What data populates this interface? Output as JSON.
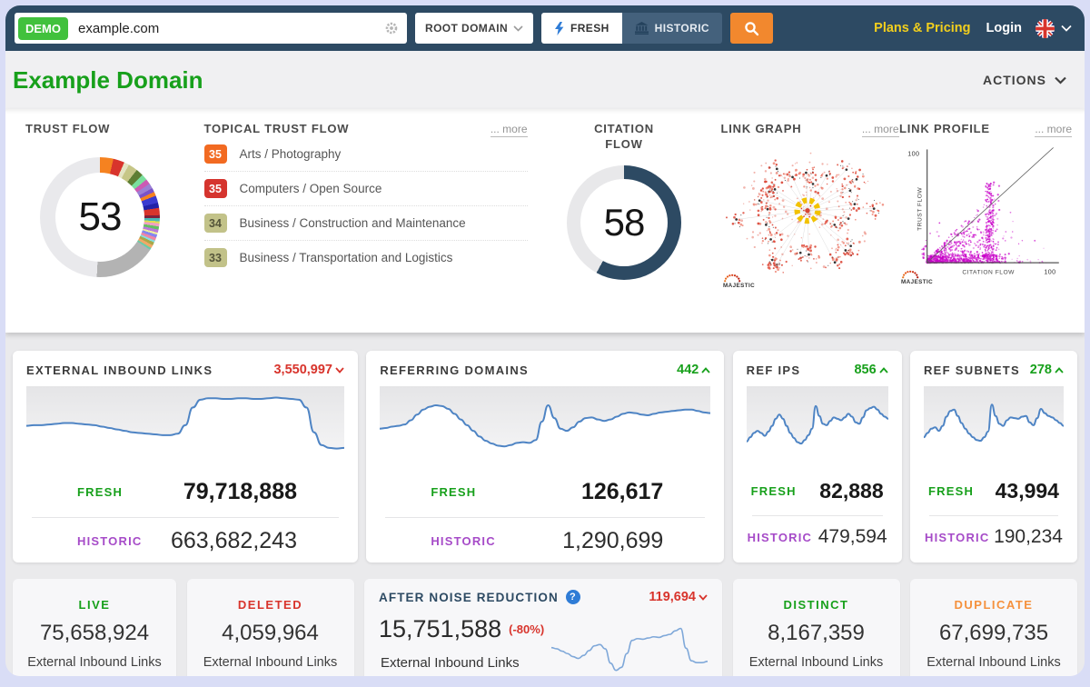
{
  "navbar": {
    "demo_badge": "DEMO",
    "search_value": "example.com",
    "scope_selector": "ROOT DOMAIN",
    "fresh_tab": "FRESH",
    "historic_tab": "HISTORIC",
    "plans_link": "Plans & Pricing",
    "login_link": "Login"
  },
  "header": {
    "title": "Example Domain",
    "actions_label": "ACTIONS"
  },
  "flow_metrics": {
    "trust_flow": {
      "label": "TRUST FLOW"
    },
    "topical_trust_flow": {
      "label": "TOPICAL TRUST FLOW",
      "more_label": "... more",
      "items": [
        {
          "score": "35",
          "label": "Arts / Photography",
          "badge_style": "background:#f26a21;color:#ffffff"
        },
        {
          "score": "35",
          "label": "Computers / Open Source",
          "badge_style": "background:#d5342e;color:#ffffff"
        },
        {
          "score": "34",
          "label": "Business / Construction and Maintenance",
          "badge_style": "background:#c2c289;color:#55553a"
        },
        {
          "score": "33",
          "label": "Business / Transportation and Logistics",
          "badge_style": "background:#c2c289;color:#55553a"
        }
      ]
    },
    "citation_flow": {
      "label": "CITATION FLOW"
    },
    "link_graph": {
      "label": "LINK GRAPH",
      "more_label": "... more",
      "brand": "MAJESTIC"
    },
    "link_profile": {
      "label": "LINK PROFILE",
      "more_label": "... more",
      "brand": "MAJESTIC"
    }
  },
  "link_cards": [
    {
      "title": "EXTERNAL INBOUND LINKS",
      "delta": "3,550,997",
      "trend": "down",
      "fresh_label": "FRESH",
      "fresh_value": "79,718,888",
      "historic_label": "HISTORIC",
      "historic_value": "663,682,243"
    },
    {
      "title": "REFERRING DOMAINS",
      "delta": "442",
      "trend": "up",
      "fresh_label": "FRESH",
      "fresh_value": "126,617",
      "historic_label": "HISTORIC",
      "historic_value": "1,290,699"
    },
    {
      "title": "REF IPS",
      "delta": "856",
      "trend": "up",
      "fresh_label": "FRESH",
      "fresh_value": "82,888",
      "historic_label": "HISTORIC",
      "historic_value": "479,594"
    },
    {
      "title": "REF SUBNETS",
      "delta": "278",
      "trend": "up",
      "fresh_label": "FRESH",
      "fresh_value": "43,994",
      "historic_label": "HISTORIC",
      "historic_value": "190,234"
    }
  ],
  "summary_cards": {
    "live": {
      "label": "LIVE",
      "value": "75,658,924",
      "subtitle": "External Inbound Links"
    },
    "deleted": {
      "label": "DELETED",
      "value": "4,059,964",
      "subtitle": "External Inbound Links"
    },
    "noise": {
      "title": "AFTER NOISE REDUCTION",
      "help_icon": "?",
      "delta": "119,694",
      "trend": "down",
      "value": "15,751,588",
      "pct_change": "(-80%)",
      "subtitle": "External Inbound Links"
    },
    "distinct": {
      "label": "DISTINCT",
      "value": "8,167,359",
      "subtitle": "External Inbound Links"
    },
    "duplicate": {
      "label": "DUPLICATE",
      "value": "67,699,735",
      "subtitle": "External Inbound Links"
    }
  },
  "colors": {
    "navbar_bg": "#2d4a63",
    "accent_orange": "#f2882e",
    "demo_green": "#41c13d",
    "link_yellow": "#f2cf1d",
    "fresh_green": "#17a01b",
    "historic_purple": "#a64bc8",
    "delta_red": "#d8342c",
    "duplicate_orange": "#f5913d",
    "spark_blue": "#4e84c4",
    "citation_navy": "#2d4a63"
  },
  "chart_data": [
    {
      "type": "donut",
      "title": "TRUST FLOW",
      "value": 53,
      "max": 100,
      "segments": [
        [
          "#f58220",
          13
        ],
        [
          "#d8342c",
          11
        ],
        [
          "#e4e4c4",
          5
        ],
        [
          "#c6c687",
          9
        ],
        [
          "#5e7e33",
          7
        ],
        [
          "#7adf9e",
          6
        ],
        [
          "#cc5ab4",
          5
        ],
        [
          "#9b7fd4",
          5
        ],
        [
          "#7a52c8",
          4
        ],
        [
          "#f58220",
          4
        ],
        [
          "#3a3ad0",
          7
        ],
        [
          "#2121a8",
          5
        ],
        [
          "#d8342c",
          7
        ],
        [
          "#80203c",
          3
        ],
        [
          "#48b8b8",
          3
        ],
        [
          "#e0e050",
          2
        ],
        [
          "#ef9fc4",
          3
        ],
        [
          "#62c062",
          3
        ],
        [
          "#b87ad8",
          3
        ],
        [
          "#efef9f",
          2
        ],
        [
          "#8585ef",
          3
        ],
        [
          "#ef85a5",
          3
        ],
        [
          "#85dfdf",
          2
        ],
        [
          "#a8a848",
          3
        ],
        [
          "#f0a868",
          3
        ],
        [
          "#68cda8",
          2
        ],
        [
          "#b3b3b3",
          60
        ],
        [
          "#e9e9ec",
          177
        ]
      ]
    },
    {
      "type": "donut",
      "title": "CITATION FLOW",
      "value": 58,
      "max": 100,
      "color": "#2d4a63",
      "track": "#e8e8ea"
    },
    {
      "type": "network",
      "title": "LINK GRAPH",
      "style": "radial backlink clusters",
      "node_colors": [
        "#e25848",
        "#ef8f80",
        "#d94434"
      ],
      "center_ring_color": "#f2c200",
      "spokes": 26
    },
    {
      "type": "scatter",
      "title": "LINK PROFILE",
      "xlabel": "CITATION FLOW",
      "ylabel": "TRUST FLOW",
      "xlim": [
        0,
        100
      ],
      "ylim": [
        0,
        100
      ],
      "x_max_tick": "100",
      "y_max_tick": "100",
      "point_color": "#c800c8",
      "diagonal": true
    },
    {
      "type": "line",
      "title": "EXTERNAL INBOUND LINKS trend",
      "unit": "normalized 0-100",
      "values": [
        44,
        45,
        45,
        46,
        47,
        48,
        48,
        47,
        46,
        45,
        43,
        41,
        39,
        37,
        35,
        34,
        33,
        32,
        31,
        31,
        33,
        45,
        70,
        81,
        83,
        83,
        82,
        82,
        83,
        83,
        82,
        82,
        83,
        84,
        83,
        82,
        81,
        70,
        35,
        17,
        13,
        12,
        13
      ]
    },
    {
      "type": "line",
      "title": "REFERRING DOMAINS trend",
      "unit": "normalized 0-100",
      "values": [
        40,
        41,
        43,
        44,
        46,
        52,
        60,
        67,
        71,
        73,
        72,
        68,
        61,
        53,
        45,
        37,
        29,
        23,
        19,
        16,
        15,
        17,
        20,
        21,
        20,
        24,
        50,
        73,
        55,
        40,
        37,
        42,
        50,
        55,
        56,
        53,
        51,
        53,
        57,
        61,
        63,
        62,
        60,
        59,
        61,
        63,
        64,
        65,
        66,
        67,
        67,
        65,
        63,
        62
      ]
    },
    {
      "type": "line",
      "title": "REF IPS trend",
      "unit": "normalized 0-100",
      "values": [
        22,
        28,
        34,
        37,
        34,
        30,
        36,
        44,
        54,
        60,
        54,
        44,
        34,
        27,
        21,
        19,
        24,
        31,
        40,
        72,
        58,
        47,
        45,
        51,
        56,
        54,
        52,
        56,
        61,
        57,
        49,
        47,
        56,
        66,
        69,
        71,
        67,
        61,
        57,
        54
      ]
    },
    {
      "type": "line",
      "title": "REF SUBNETS trend",
      "unit": "normalized 0-100",
      "values": [
        28,
        34,
        40,
        42,
        37,
        44,
        57,
        65,
        67,
        58,
        48,
        40,
        33,
        28,
        24,
        23,
        28,
        36,
        74,
        58,
        47,
        44,
        52,
        56,
        55,
        54,
        57,
        58,
        49,
        45,
        55,
        68,
        62,
        58,
        56,
        52,
        48,
        44
      ]
    },
    {
      "type": "line",
      "title": "AFTER NOISE REDUCTION trend",
      "unit": "normalized 0-100",
      "values": [
        46,
        44,
        40,
        36,
        31,
        28,
        33,
        41,
        49,
        51,
        44,
        20,
        8,
        13,
        36,
        58,
        61,
        60,
        62,
        64,
        63,
        66,
        68,
        74,
        78,
        45,
        24,
        21,
        21,
        23
      ]
    }
  ]
}
